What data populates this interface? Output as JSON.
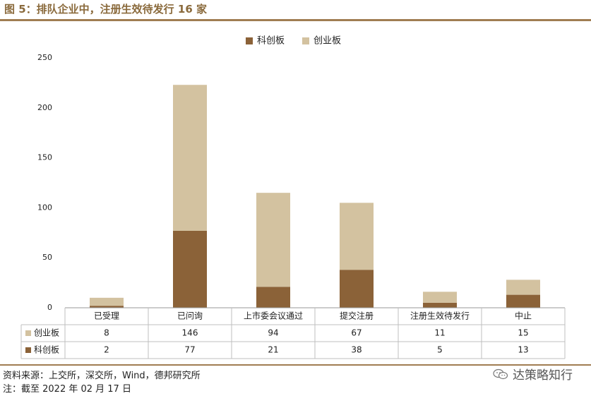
{
  "figure": {
    "title": "图 5：排队企业中，注册生效待发行 16 家",
    "source": "资料来源：上交所，深交所，Wind，德邦研究所",
    "note": "注：截至 2022 年 02 月 17 日",
    "brand": "达策略知行"
  },
  "colors": {
    "kcb": "#8b6238",
    "cyb": "#d3c2a0",
    "rule": "#a07d52",
    "title": "#8a6a3c"
  },
  "chart_data": {
    "type": "bar",
    "stacked": true,
    "categories": [
      "已受理",
      "已问询",
      "上市委会议通过",
      "提交注册",
      "注册生效待发行",
      "中止"
    ],
    "series": [
      {
        "name": "科创板",
        "values": [
          2,
          77,
          21,
          38,
          5,
          13
        ]
      },
      {
        "name": "创业板",
        "values": [
          8,
          146,
          94,
          67,
          11,
          15
        ]
      }
    ],
    "yticks": [
      0,
      50,
      100,
      150,
      200,
      250
    ],
    "ylim": [
      0,
      250
    ],
    "legend_position": "top-center",
    "data_table": true,
    "grid": false
  }
}
